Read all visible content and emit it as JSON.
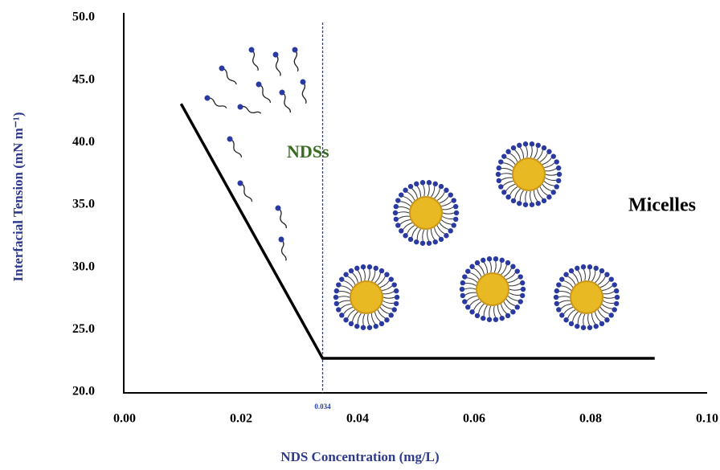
{
  "chart_data": {
    "type": "line",
    "x_label": "NDS Concentration (mg/L)",
    "y_label": "Interfacial Tension (mN m⁻¹)",
    "xlim": [
      0,
      0.1
    ],
    "ylim": [
      20,
      50
    ],
    "xticks": [
      {
        "value": 0,
        "label": "0.00"
      },
      {
        "value": 0.02,
        "label": "0.02"
      },
      {
        "value": 0.04,
        "label": "0.04"
      },
      {
        "value": 0.06,
        "label": "0.06"
      },
      {
        "value": 0.08,
        "label": "0.08"
      },
      {
        "value": 0.1,
        "label": "0.10"
      }
    ],
    "yticks": [
      {
        "value": 20,
        "label": "20.0"
      },
      {
        "value": 25,
        "label": "25.0"
      },
      {
        "value": 30,
        "label": "30.0"
      },
      {
        "value": 35,
        "label": "35.0"
      },
      {
        "value": 40,
        "label": "40.0"
      },
      {
        "value": 45,
        "label": "45.0"
      },
      {
        "value": 50,
        "label": "50.0"
      }
    ],
    "x": [
      0.0097,
      0.034,
      0.091
    ],
    "series": [
      {
        "color": "#000000",
        "values": [
          43.1,
          22.7,
          22.7
        ]
      }
    ],
    "vline": 0.034,
    "annotations": [
      "NDSs",
      "Micelles"
    ]
  }
}
